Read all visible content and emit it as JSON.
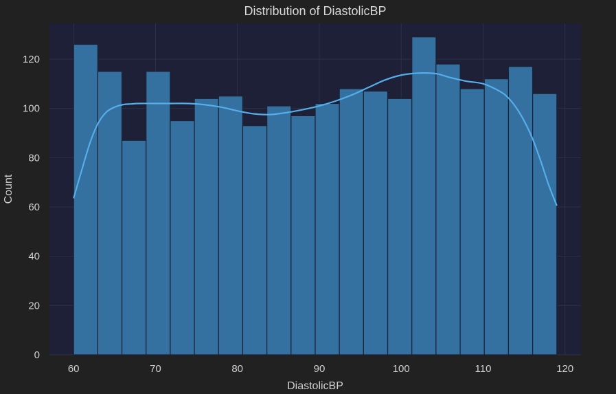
{
  "chart_data": {
    "type": "bar",
    "title": "Distribution of DiastolicBP",
    "xlabel": "DiastolicBP",
    "ylabel": "Count",
    "xlim": [
      57.05,
      121.95
    ],
    "ylim": [
      0,
      134.5
    ],
    "xticks": [
      60,
      70,
      80,
      90,
      100,
      110,
      120
    ],
    "yticks": [
      0,
      20,
      40,
      60,
      80,
      100,
      120
    ],
    "grid": true,
    "bin_start": 60,
    "bin_width": 2.95,
    "counts": [
      126,
      115,
      87,
      115,
      95,
      104,
      105,
      93,
      101,
      97,
      102,
      108,
      107,
      104,
      129,
      118,
      108,
      112,
      117,
      106
    ],
    "kde": {
      "x": [
        60,
        61,
        62,
        63,
        64,
        65,
        66,
        67,
        68,
        70,
        72,
        74,
        76,
        78,
        80,
        82,
        84,
        86,
        88,
        90,
        92,
        94,
        96,
        98,
        100,
        102,
        104,
        105,
        106,
        108,
        110,
        112,
        113,
        114,
        115,
        116,
        117,
        118,
        119
      ],
      "y": [
        63.5,
        75,
        86,
        94,
        98.5,
        100.5,
        101.5,
        101.8,
        102,
        102,
        102,
        102,
        101.5,
        100.5,
        99,
        97.8,
        97.5,
        98.3,
        99.5,
        101,
        103,
        105.5,
        108.5,
        111.5,
        113.5,
        114.3,
        114.2,
        113.5,
        112.5,
        111,
        110,
        107,
        104.5,
        100.5,
        95,
        88,
        79,
        69,
        60.5
      ]
    },
    "colors": {
      "bar_fill": "#3470a0",
      "kde_line": "#56aee8",
      "plot_bg": "#1e2038"
    }
  }
}
